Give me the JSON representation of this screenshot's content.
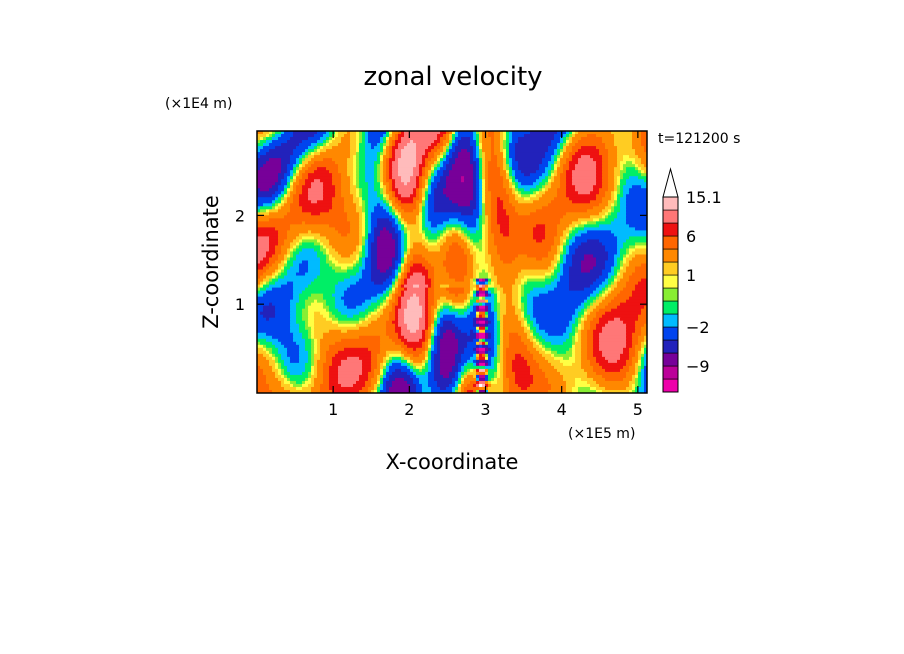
{
  "chart_data": {
    "type": "heatmap",
    "title": "zonal velocity",
    "xlabel": "X-coordinate",
    "ylabel": "Z-coordinate",
    "x_multiplier": "(×1E5 m)",
    "y_multiplier": "(×1E4 m)",
    "time_label": "t=121200 s",
    "xlim": [
      0,
      5.12
    ],
    "ylim": [
      0,
      2.95
    ],
    "x_ticks": [
      1,
      2,
      3,
      4,
      5
    ],
    "y_ticks": [
      1,
      2
    ],
    "colorbar": {
      "labels": [
        {
          "text": "15.1",
          "value": 15.1
        },
        {
          "text": "6",
          "value": 6
        },
        {
          "text": "1",
          "value": 1
        },
        {
          "text": "−2",
          "value": -2
        },
        {
          "text": "−9",
          "value": -9
        }
      ],
      "levels": [
        {
          "lo": -18,
          "hi": -12,
          "color": "#ee00aa"
        },
        {
          "lo": -12,
          "hi": -9,
          "color": "#bb0099"
        },
        {
          "lo": -9,
          "hi": -6,
          "color": "#770099"
        },
        {
          "lo": -6,
          "hi": -4,
          "color": "#2222bb"
        },
        {
          "lo": -4,
          "hi": -2,
          "color": "#0044ee"
        },
        {
          "lo": -2,
          "hi": -1,
          "color": "#00bbff"
        },
        {
          "lo": -1,
          "hi": 0,
          "color": "#00ee66"
        },
        {
          "lo": 0,
          "hi": 0.5,
          "color": "#88ee33"
        },
        {
          "lo": 0.5,
          "hi": 1,
          "color": "#ffff44"
        },
        {
          "lo": 1,
          "hi": 2,
          "color": "#ffcc22"
        },
        {
          "lo": 2,
          "hi": 4,
          "color": "#ff8800"
        },
        {
          "lo": 4,
          "hi": 6,
          "color": "#ff6600"
        },
        {
          "lo": 6,
          "hi": 8,
          "color": "#ee1111"
        },
        {
          "lo": 8,
          "hi": 11,
          "color": "#ff7777"
        },
        {
          "lo": 11,
          "hi": 15.1,
          "color": "#ffbbbb"
        }
      ],
      "overflow_color": "#ffffff"
    }
  }
}
